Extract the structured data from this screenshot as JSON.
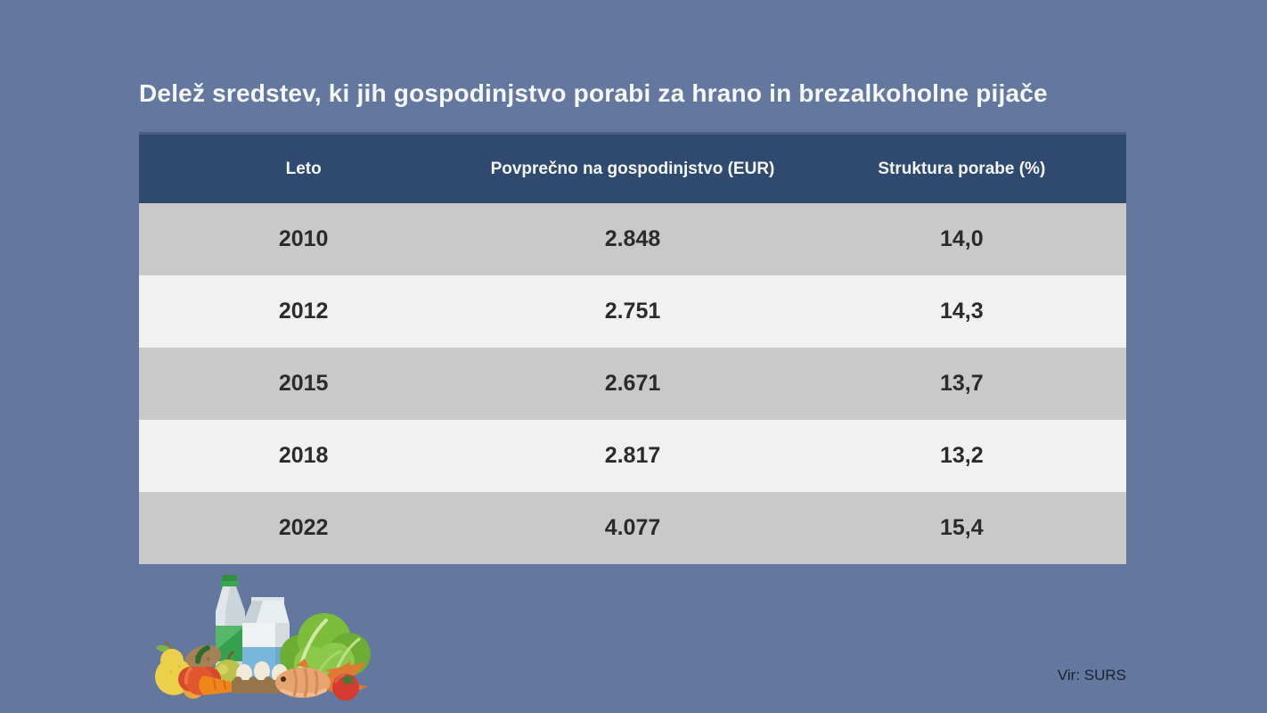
{
  "header": {
    "title": "Delež sredstev, ki jih gospodinjstvo porabi za hrano in brezalkoholne pijače"
  },
  "table": {
    "columns": [
      "Leto",
      "Povprečno na gospodinjstvo (EUR)",
      "Struktura porabe (%)"
    ],
    "rows": [
      [
        "2010",
        "2.848",
        "14,0"
      ],
      [
        "2012",
        "2.751",
        "14,3"
      ],
      [
        "2015",
        "2.671",
        "13,7"
      ],
      [
        "2018",
        "2.817",
        "13,2"
      ],
      [
        "2022",
        "4.077",
        "15,4"
      ]
    ]
  },
  "footer": {
    "source": "Vir: SURS"
  },
  "illustration": {
    "name": "groceries-illustration",
    "items": [
      "water-bottle",
      "milk-carton",
      "lettuce",
      "pear",
      "orange",
      "potato",
      "red-pepper",
      "apple",
      "carrot",
      "egg-carton",
      "fish",
      "tomato",
      "bread"
    ]
  },
  "colors": {
    "background": "#64789f",
    "header_bg": "#2f4a6e",
    "header_border": "#4b5f83",
    "header_text": "#f5f7fa",
    "row_dark": "#c9c9c9",
    "row_light": "#f1f1f1",
    "cell_text": "#2b2b2b",
    "title_text": "#f5f7fa",
    "source_text": "#16222f"
  },
  "chart_data": {
    "type": "table",
    "title": "Delež sredstev, ki jih gospodinjstvo porabi za hrano in brezalkoholne pijače",
    "columns": [
      "Leto",
      "Povprečno na gospodinjstvo (EUR)",
      "Struktura porabe (%)"
    ],
    "rows": [
      [
        "2010",
        "2.848",
        "14,0"
      ],
      [
        "2012",
        "2.751",
        "14,3"
      ],
      [
        "2015",
        "2.671",
        "13,7"
      ],
      [
        "2018",
        "2.817",
        "13,2"
      ],
      [
        "2022",
        "4.077",
        "15,4"
      ]
    ],
    "years": [
      2010,
      2012,
      2015,
      2018,
      2022
    ],
    "avg_per_household_eur": [
      2848,
      2751,
      2671,
      2817,
      4077
    ],
    "share_of_spending_pct": [
      14.0,
      14.3,
      13.7,
      13.2,
      15.4
    ],
    "source": "Vir: SURS"
  }
}
